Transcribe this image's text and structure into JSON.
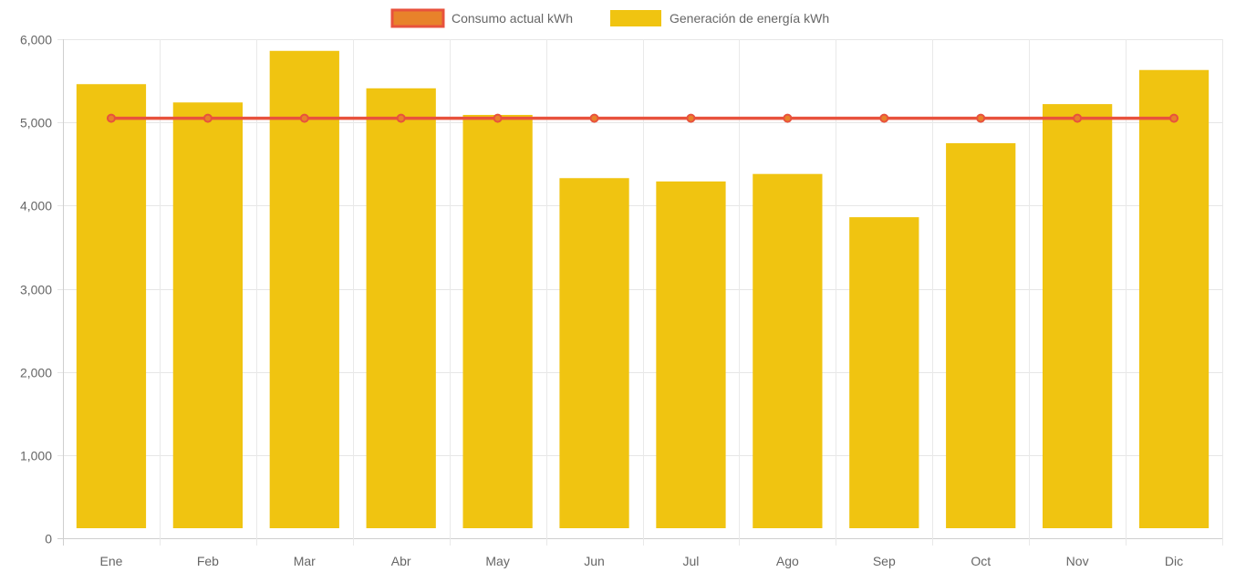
{
  "chart_data": {
    "type": "bar",
    "categories": [
      "Ene",
      "Feb",
      "Mar",
      "Abr",
      "May",
      "Jun",
      "Jul",
      "Ago",
      "Sep",
      "Oct",
      "Nov",
      "Dic"
    ],
    "series": [
      {
        "name": "Consumo actual kWh",
        "type": "line",
        "values": [
          5050,
          5050,
          5050,
          5050,
          5050,
          5050,
          5050,
          5050,
          5050,
          5050,
          5050,
          5050
        ],
        "color": "#e8523d",
        "legend_fill": "#e8822a"
      },
      {
        "name": "Generación de energía kWh",
        "type": "bar",
        "values": [
          5460,
          5240,
          5860,
          5410,
          5090,
          4330,
          4290,
          4380,
          3860,
          4750,
          5220,
          5630
        ],
        "color": "#f0c411"
      }
    ],
    "ylim": [
      0,
      6000
    ],
    "yticks": [
      "0",
      "1,000",
      "2,000",
      "3,000",
      "4,000",
      "5,000",
      "6,000"
    ],
    "grid": true,
    "legend_position": "top-center",
    "title": "",
    "xlabel": "",
    "ylabel": ""
  }
}
